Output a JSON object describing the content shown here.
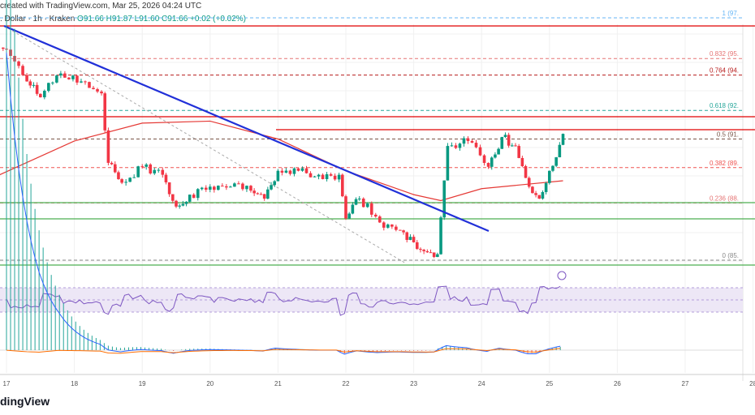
{
  "header": {
    "credit": "created with TradingView.com, Mar 25, 2026 04:24 UTC",
    "symbol": ". Dollar · 1h · Kraken",
    "open": "O91.66",
    "high": "H91.87",
    "low": "L91.60",
    "close": "C91.66",
    "change": "+0.02 (+0.02%)"
  },
  "logo": "dingView",
  "colors": {
    "up": "#089981",
    "down": "#f23645",
    "trendline": "#2130d8",
    "ma": "#e53935",
    "rsi": "#7e57c2",
    "resistance": "#e00000",
    "support": "#4caf50"
  },
  "fib_labels": [
    {
      "level": 1,
      "text": "1 (97.",
      "color": "#64b5f6"
    },
    {
      "level": 0.832,
      "text": "0.832 (95.",
      "color": "#e57373"
    },
    {
      "level": 0.764,
      "text": "0.764 (94.",
      "color": "#b71c1c"
    },
    {
      "level": 0.618,
      "text": "0.618 (92.",
      "color": "#26a69a"
    },
    {
      "level": 0.5,
      "text": "0.5 (91.",
      "color": "#795548"
    },
    {
      "level": 0.382,
      "text": "0.382 (89.",
      "color": "#ef5350"
    },
    {
      "level": 0.236,
      "text": "0.236 (88.",
      "color": "#e57373"
    },
    {
      "level": 0,
      "text": "0 (85.",
      "color": "#888888"
    }
  ],
  "chart_data": {
    "type": "candlestick",
    "xlabel": "",
    "ylabel": "",
    "x_ticks": [
      "17",
      "18",
      "19",
      "20",
      "21",
      "22",
      "23",
      "24",
      "25",
      "26",
      "27",
      "28"
    ],
    "fib_range": [
      85.3,
      97.5
    ],
    "price_path": {
      "day": [
        16.9,
        17.0,
        17.3,
        17.5,
        17.8,
        18.1,
        18.4,
        18.5,
        18.7,
        19.0,
        19.3,
        19.5,
        19.7,
        20.0,
        20.3,
        20.6,
        20.8,
        21.0,
        21.3,
        21.6,
        21.9,
        22.0,
        22.2,
        22.5,
        22.8,
        23.0,
        23.2,
        23.35,
        23.5,
        23.8,
        24.1,
        24.3,
        24.5,
        24.7,
        24.85,
        25.0,
        25.2
      ],
      "close": [
        96.0,
        95.9,
        94.3,
        93.5,
        94.7,
        94.3,
        93.7,
        90.2,
        89.2,
        90.0,
        89.6,
        88.0,
        88.6,
        89.0,
        89.0,
        88.8,
        88.4,
        89.8,
        89.8,
        89.6,
        89.6,
        87.4,
        88.4,
        87.2,
        86.8,
        86.2,
        85.7,
        85.6,
        91.05,
        91.3,
        90.0,
        91.5,
        91.05,
        89.0,
        88.4,
        89.8,
        91.66
      ]
    },
    "ma": {
      "day": [
        16.9,
        18.0,
        19.0,
        20.0,
        21.0,
        22.0,
        23.0,
        23.4,
        24.0,
        25.2
      ],
      "value": [
        89.6,
        91.3,
        92.2,
        92.3,
        91.4,
        89.8,
        88.6,
        88.3,
        88.9,
        89.3
      ]
    }
  }
}
